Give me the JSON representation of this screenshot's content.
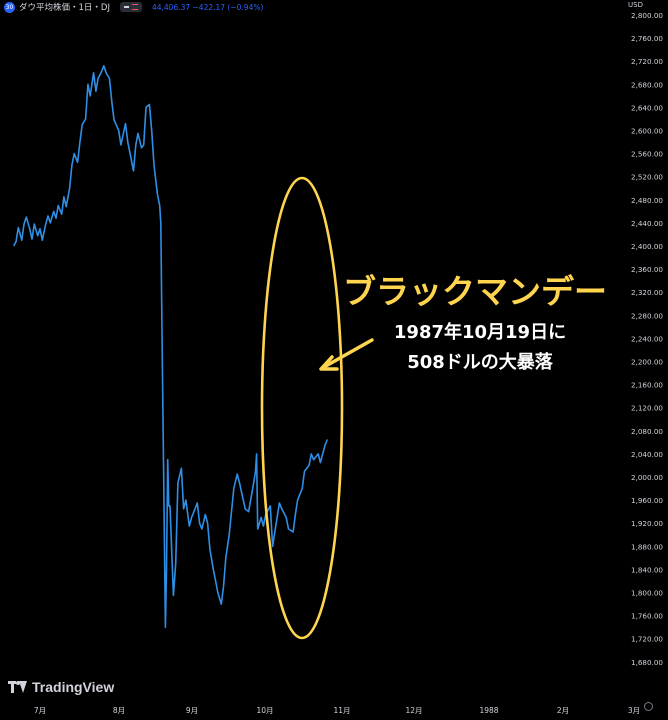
{
  "header": {
    "badge": "30",
    "title": "ダウ平均株価・1日・DJ",
    "values": "44,406.37 −422.17 (−0.94%)"
  },
  "currency": "USD",
  "watermark": "TradingView",
  "annotation": {
    "title": "ブラックマンデー",
    "line1": "1987年10月19日に",
    "line2": "508ドルの大暴落"
  },
  "colors": {
    "background": "#000000",
    "line": "#2f8fe6",
    "annotation": "#ffd54f",
    "text": "#d1d4dc"
  },
  "icons": [
    "tradingview-logo-icon",
    "settings-icon",
    "arrow-icon"
  ],
  "chart_data": {
    "type": "line",
    "title": "",
    "xlabel": "",
    "ylabel": "",
    "ylim": [
      1655,
      2810
    ],
    "y_ticks": [
      "2,800.00",
      "2,760.00",
      "2,720.00",
      "2,680.00",
      "2,640.00",
      "2,600.00",
      "2,560.00",
      "2,520.00",
      "2,480.00",
      "2,440.00",
      "2,400.00",
      "2,360.00",
      "2,320.00",
      "2,280.00",
      "2,240.00",
      "2,200.00",
      "2,160.00",
      "2,120.00",
      "2,080.00",
      "2,040.00",
      "2,000.00",
      "1,960.00",
      "1,920.00",
      "1,880.00",
      "1,840.00",
      "1,800.00",
      "1,760.00",
      "1,720.00",
      "1,680.00"
    ],
    "x_ticks": [
      {
        "label": "7月",
        "date": "1987-07-01"
      },
      {
        "label": "8月",
        "date": "1987-08-01"
      },
      {
        "label": "9月",
        "date": "1987-09-01"
      },
      {
        "label": "10月",
        "date": "1987-10-01"
      },
      {
        "label": "11月",
        "date": "1987-11-01"
      },
      {
        "label": "12月",
        "date": "1987-12-01"
      },
      {
        "label": "1988",
        "date": "1988-01-01"
      },
      {
        "label": "2月",
        "date": "1988-02-01"
      },
      {
        "label": "3月",
        "date": "1988-03-01"
      }
    ],
    "grid": false,
    "series": [
      {
        "values": [
          [
            "1987-06-08",
            2400
          ],
          [
            "1987-06-10",
            2408
          ],
          [
            "1987-06-12",
            2432
          ],
          [
            "1987-06-15",
            2410
          ],
          [
            "1987-06-17",
            2438
          ],
          [
            "1987-06-19",
            2450
          ],
          [
            "1987-06-22",
            2430
          ],
          [
            "1987-06-24",
            2412
          ],
          [
            "1987-06-26",
            2438
          ],
          [
            "1987-06-29",
            2418
          ],
          [
            "1987-07-01",
            2430
          ],
          [
            "1987-07-03",
            2410
          ],
          [
            "1987-07-06",
            2438
          ],
          [
            "1987-07-08",
            2452
          ],
          [
            "1987-07-10",
            2440
          ],
          [
            "1987-07-13",
            2460
          ],
          [
            "1987-07-15",
            2448
          ],
          [
            "1987-07-17",
            2470
          ],
          [
            "1987-07-20",
            2455
          ],
          [
            "1987-07-22",
            2485
          ],
          [
            "1987-07-24",
            2468
          ],
          [
            "1987-07-27",
            2500
          ],
          [
            "1987-07-29",
            2540
          ],
          [
            "1987-07-31",
            2560
          ],
          [
            "1987-08-03",
            2545
          ],
          [
            "1987-08-05",
            2580
          ],
          [
            "1987-08-07",
            2610
          ],
          [
            "1987-08-10",
            2620
          ],
          [
            "1987-08-12",
            2680
          ],
          [
            "1987-08-14",
            2660
          ],
          [
            "1987-08-17",
            2700
          ],
          [
            "1987-08-19",
            2668
          ],
          [
            "1987-08-21",
            2690
          ],
          [
            "1987-08-24",
            2702
          ],
          [
            "1987-08-26",
            2712
          ],
          [
            "1987-08-28",
            2700
          ],
          [
            "1987-08-31",
            2690
          ],
          [
            "1987-09-02",
            2650
          ],
          [
            "1987-09-04",
            2618
          ],
          [
            "1987-09-08",
            2600
          ],
          [
            "1987-09-10",
            2575
          ],
          [
            "1987-09-14",
            2612
          ],
          [
            "1987-09-16",
            2580
          ],
          [
            "1987-09-18",
            2560
          ],
          [
            "1987-09-21",
            2530
          ],
          [
            "1987-09-23",
            2575
          ],
          [
            "1987-09-25",
            2595
          ],
          [
            "1987-09-28",
            2570
          ],
          [
            "1987-09-30",
            2575
          ],
          [
            "1987-10-02",
            2640
          ],
          [
            "1987-10-05",
            2645
          ],
          [
            "1987-10-07",
            2600
          ],
          [
            "1987-10-09",
            2540
          ],
          [
            "1987-10-12",
            2490
          ],
          [
            "1987-10-14",
            2470
          ],
          [
            "1987-10-15",
            2440
          ],
          [
            "1987-10-16",
            2250
          ],
          [
            "1987-10-19",
            1740
          ],
          [
            "1987-10-20",
            1840
          ],
          [
            "1987-10-21",
            2030
          ],
          [
            "1987-10-22",
            1950
          ],
          [
            "1987-10-23",
            1950
          ],
          [
            "1987-10-26",
            1795
          ],
          [
            "1987-10-28",
            1850
          ],
          [
            "1987-10-30",
            1990
          ],
          [
            "1987-11-02",
            2015
          ],
          [
            "1987-11-04",
            1945
          ],
          [
            "1987-11-06",
            1960
          ],
          [
            "1987-11-09",
            1915
          ],
          [
            "1987-11-11",
            1930
          ],
          [
            "1987-11-13",
            1940
          ],
          [
            "1987-11-16",
            1955
          ],
          [
            "1987-11-18",
            1920
          ],
          [
            "1987-11-20",
            1910
          ],
          [
            "1987-11-23",
            1935
          ],
          [
            "1987-11-25",
            1920
          ],
          [
            "1987-11-27",
            1875
          ],
          [
            "1987-11-30",
            1840
          ],
          [
            "1987-12-02",
            1820
          ],
          [
            "1987-12-04",
            1800
          ],
          [
            "1987-12-07",
            1780
          ],
          [
            "1987-12-09",
            1810
          ],
          [
            "1987-12-11",
            1860
          ],
          [
            "1987-12-14",
            1900
          ],
          [
            "1987-12-16",
            1940
          ],
          [
            "1987-12-18",
            1980
          ],
          [
            "1987-12-21",
            2005
          ],
          [
            "1987-12-23",
            1990
          ],
          [
            "1987-12-28",
            1945
          ],
          [
            "1987-12-31",
            1940
          ],
          [
            "1988-01-04",
            1985
          ],
          [
            "1988-01-06",
            2010
          ],
          [
            "1988-01-07",
            2040
          ],
          [
            "1988-01-08",
            1910
          ],
          [
            "1988-01-11",
            1930
          ],
          [
            "1988-01-13",
            1915
          ],
          [
            "1988-01-15",
            1935
          ],
          [
            "1988-01-19",
            1950
          ],
          [
            "1988-01-21",
            1880
          ],
          [
            "1988-01-25",
            1930
          ],
          [
            "1988-01-27",
            1955
          ],
          [
            "1988-01-29",
            1945
          ],
          [
            "1988-02-02",
            1930
          ],
          [
            "1988-02-04",
            1910
          ],
          [
            "1988-02-08",
            1905
          ],
          [
            "1988-02-10",
            1935
          ],
          [
            "1988-02-12",
            1960
          ],
          [
            "1988-02-16",
            1980
          ],
          [
            "1988-02-18",
            2010
          ],
          [
            "1988-02-22",
            2020
          ],
          [
            "1988-02-24",
            2040
          ],
          [
            "1988-02-26",
            2030
          ],
          [
            "1988-03-01",
            2040
          ],
          [
            "1988-03-03",
            2025
          ],
          [
            "1988-03-07",
            2055
          ],
          [
            "1988-03-09",
            2065
          ]
        ]
      }
    ]
  }
}
